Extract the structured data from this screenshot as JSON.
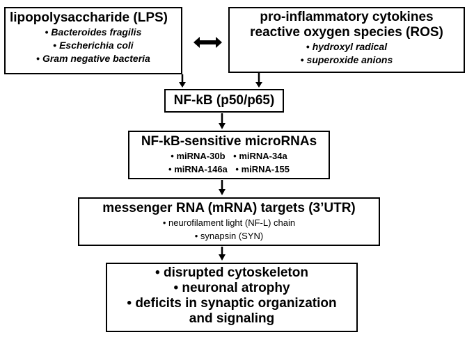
{
  "lps_box": {
    "title": "lipopolysaccharide (LPS)",
    "items": [
      "Bacteroides fragilis",
      "Escherichia coli",
      "Gram negative bacteria"
    ]
  },
  "cytokine_box": {
    "title_line1": "pro-inflammatory cytokines",
    "title_line2": "reactive oxygen species (ROS)",
    "items": [
      "hydroxyl radical",
      "superoxide anions"
    ]
  },
  "nfkb_box": {
    "label": "NF-kB (p50/p65)"
  },
  "mirna_box": {
    "title": "NF-kB-sensitive microRNAs",
    "row1": [
      "miRNA-30b",
      "miRNA-34a"
    ],
    "row2": [
      "miRNA-146a",
      "miRNA-155"
    ]
  },
  "mrna_box": {
    "title": "messenger RNA (mRNA) targets (3’UTR)",
    "items": [
      "neurofilament light (NF-L) chain",
      "synapsin (SYN)"
    ]
  },
  "outcome_box": {
    "items": [
      "disrupted cytoskeleton",
      "neuronal atrophy",
      "deficits in synaptic organization"
    ],
    "continuation": "and signaling"
  }
}
